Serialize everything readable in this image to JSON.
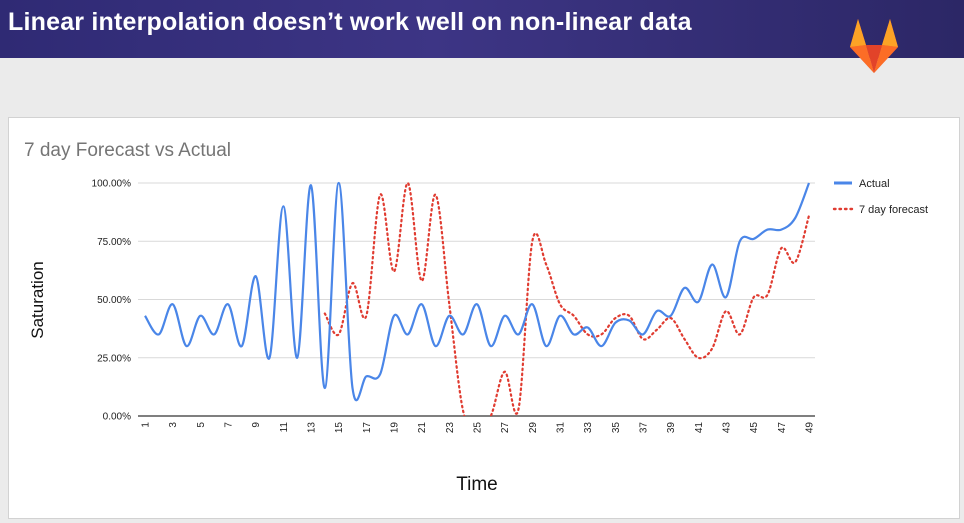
{
  "header": {
    "title": "Linear interpolation doesn’t work well on non-linear data"
  },
  "logo": {
    "icon": "gitlab-fox-icon",
    "colors": [
      "#e24329",
      "#fc6d26",
      "#fca326"
    ]
  },
  "chart_data": {
    "type": "line",
    "title": "7 day Forecast vs Actual",
    "xlabel": "Time",
    "ylabel": "Saturation",
    "ylim": [
      0,
      100
    ],
    "yticks": [
      "0.00%",
      "25.00%",
      "50.00%",
      "75.00%",
      "100.00%"
    ],
    "xlim": [
      1,
      49
    ],
    "xticks": [
      "1",
      "3",
      "5",
      "7",
      "9",
      "11",
      "13",
      "15",
      "17",
      "19",
      "21",
      "23",
      "25",
      "27",
      "29",
      "31",
      "33",
      "35",
      "37",
      "39",
      "41",
      "43",
      "45",
      "47",
      "49"
    ],
    "grid": true,
    "legend_position": "right",
    "series": [
      {
        "name": "Actual",
        "color": "#4a86e8",
        "style": "solid",
        "x": [
          1,
          2,
          3,
          4,
          5,
          6,
          7,
          8,
          9,
          10,
          11,
          12,
          13,
          14,
          15,
          16,
          17,
          18,
          19,
          20,
          21,
          22,
          23,
          24,
          25,
          26,
          27,
          28,
          29,
          30,
          31,
          32,
          33,
          34,
          35,
          36,
          37,
          38,
          39,
          40,
          41,
          42,
          43,
          44,
          45,
          46,
          47,
          48,
          49
        ],
        "values": [
          43,
          35,
          48,
          30,
          43,
          35,
          48,
          30,
          60,
          25,
          90,
          25,
          99,
          12,
          100,
          12,
          17,
          18,
          43,
          35,
          48,
          30,
          43,
          35,
          48,
          30,
          43,
          35,
          48,
          30,
          43,
          35,
          38,
          30,
          40,
          41,
          35,
          45,
          43,
          55,
          49,
          65,
          51,
          75,
          76,
          80,
          80,
          85,
          100
        ]
      },
      {
        "name": "7 day forecast",
        "color": "#e03c31",
        "style": "dotted",
        "x": [
          14,
          15,
          16,
          17,
          18,
          19,
          20,
          21,
          22,
          23,
          24,
          25,
          26,
          27,
          28,
          29,
          30,
          31,
          32,
          33,
          34,
          35,
          36,
          37,
          38,
          39,
          40,
          41,
          42,
          43,
          44,
          45,
          46,
          47,
          48,
          49
        ],
        "values": [
          44,
          35,
          57,
          43,
          95,
          62,
          100,
          58,
          95,
          48,
          2,
          -5,
          0,
          19,
          3,
          75,
          65,
          48,
          43,
          35,
          35,
          42,
          43,
          33,
          37,
          42,
          33,
          25,
          29,
          45,
          35,
          51,
          52,
          72,
          66,
          86
        ]
      }
    ]
  }
}
